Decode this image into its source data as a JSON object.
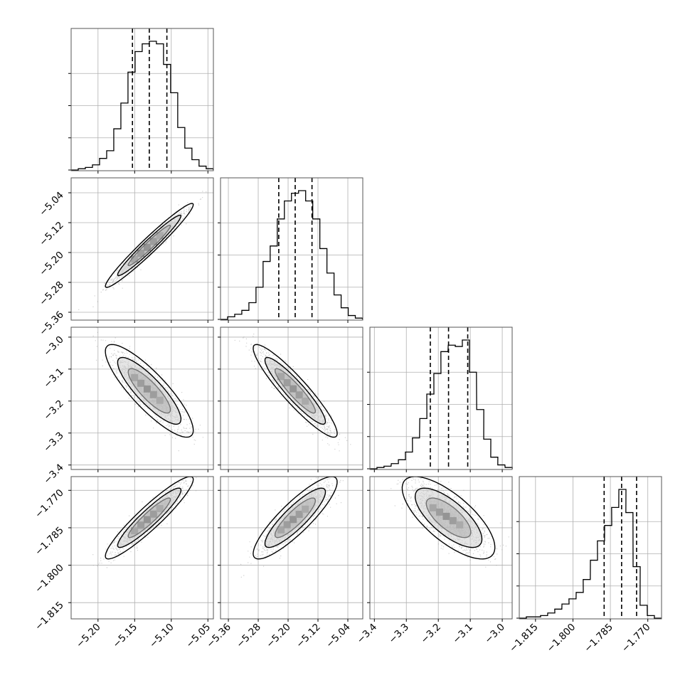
{
  "chart_data": {
    "type": "scatter",
    "title": "",
    "grid": true,
    "colors": {
      "ink": "#000000",
      "grid": "#b0b0b0",
      "scatter": "#9a9a9a",
      "frame": "#555555"
    },
    "parameters": [
      {
        "range": [
          -5.2367,
          -5.0425
        ],
        "ticks": [
          {
            "v": -5.2,
            "label": "−5.20"
          },
          {
            "v": -5.15,
            "label": "−5.15"
          },
          {
            "v": -5.1,
            "label": "−5.10"
          },
          {
            "v": -5.05,
            "label": "−5.05"
          }
        ],
        "quantiles": [
          -5.153,
          -5.13,
          -5.106
        ],
        "median": -5.13,
        "sigma": 0.024,
        "histogram": [
          {
            "x": -5.2367,
            "c": 0.0
          },
          {
            "x": -5.227,
            "c": 0.01
          },
          {
            "x": -5.2173,
            "c": 0.02
          },
          {
            "x": -5.2076,
            "c": 0.04
          },
          {
            "x": -5.1979,
            "c": 0.09
          },
          {
            "x": -5.1882,
            "c": 0.15
          },
          {
            "x": -5.1785,
            "c": 0.32
          },
          {
            "x": -5.1688,
            "c": 0.52
          },
          {
            "x": -5.1591,
            "c": 0.76
          },
          {
            "x": -5.1494,
            "c": 0.92
          },
          {
            "x": -5.1397,
            "c": 0.98
          },
          {
            "x": -5.13,
            "c": 1.0
          },
          {
            "x": -5.1203,
            "c": 0.98
          },
          {
            "x": -5.1106,
            "c": 0.82
          },
          {
            "x": -5.1009,
            "c": 0.6
          },
          {
            "x": -5.0912,
            "c": 0.33
          },
          {
            "x": -5.0815,
            "c": 0.17
          },
          {
            "x": -5.0718,
            "c": 0.08
          },
          {
            "x": -5.0621,
            "c": 0.03
          },
          {
            "x": -5.0524,
            "c": 0.01
          }
        ]
      },
      {
        "range": [
          -5.381,
          -5.0
        ],
        "ticks": [
          {
            "v": -5.36,
            "label": "−5.36"
          },
          {
            "v": -5.28,
            "label": "−5.28"
          },
          {
            "v": -5.2,
            "label": "−5.20"
          },
          {
            "v": -5.12,
            "label": "−5.12"
          },
          {
            "v": -5.04,
            "label": "−5.04"
          }
        ],
        "quantiles": [
          -5.225,
          -5.181,
          -5.136
        ],
        "median": -5.181,
        "sigma": 0.045,
        "histogram": [
          {
            "x": -5.381,
            "c": 0.0
          },
          {
            "x": -5.362,
            "c": 0.02
          },
          {
            "x": -5.343,
            "c": 0.04
          },
          {
            "x": -5.324,
            "c": 0.07
          },
          {
            "x": -5.305,
            "c": 0.13
          },
          {
            "x": -5.286,
            "c": 0.25
          },
          {
            "x": -5.267,
            "c": 0.45
          },
          {
            "x": -5.248,
            "c": 0.57
          },
          {
            "x": -5.229,
            "c": 0.78
          },
          {
            "x": -5.21,
            "c": 0.92
          },
          {
            "x": -5.191,
            "c": 0.98
          },
          {
            "x": -5.172,
            "c": 1.0
          },
          {
            "x": -5.153,
            "c": 0.92
          },
          {
            "x": -5.134,
            "c": 0.78
          },
          {
            "x": -5.115,
            "c": 0.55
          },
          {
            "x": -5.096,
            "c": 0.36
          },
          {
            "x": -5.077,
            "c": 0.19
          },
          {
            "x": -5.058,
            "c": 0.09
          },
          {
            "x": -5.039,
            "c": 0.03
          },
          {
            "x": -5.02,
            "c": 0.01
          }
        ]
      },
      {
        "range": [
          -3.414,
          -2.969
        ],
        "ticks": [
          {
            "v": -3.4,
            "label": "−3.4"
          },
          {
            "v": -3.3,
            "label": "−3.3"
          },
          {
            "v": -3.2,
            "label": "−3.2"
          },
          {
            "v": -3.1,
            "label": "−3.1"
          },
          {
            "v": -3.0,
            "label": "−3.0"
          }
        ],
        "quantiles": [
          -3.225,
          -3.168,
          -3.108
        ],
        "median": -3.168,
        "sigma": 0.058,
        "histogram": [
          {
            "x": -3.414,
            "c": 0.0
          },
          {
            "x": -3.392,
            "c": 0.01
          },
          {
            "x": -3.37,
            "c": 0.02
          },
          {
            "x": -3.347,
            "c": 0.04
          },
          {
            "x": -3.325,
            "c": 0.07
          },
          {
            "x": -3.303,
            "c": 0.13
          },
          {
            "x": -3.281,
            "c": 0.24
          },
          {
            "x": -3.258,
            "c": 0.39
          },
          {
            "x": -3.236,
            "c": 0.58
          },
          {
            "x": -3.214,
            "c": 0.74
          },
          {
            "x": -3.192,
            "c": 0.91
          },
          {
            "x": -3.169,
            "c": 0.96
          },
          {
            "x": -3.147,
            "c": 0.95
          },
          {
            "x": -3.125,
            "c": 1.0
          },
          {
            "x": -3.103,
            "c": 0.75
          },
          {
            "x": -3.08,
            "c": 0.46
          },
          {
            "x": -3.058,
            "c": 0.23
          },
          {
            "x": -3.036,
            "c": 0.09
          },
          {
            "x": -3.014,
            "c": 0.03
          },
          {
            "x": -2.991,
            "c": 0.01
          }
        ]
      },
      {
        "range": [
          -1.8215,
          -1.7645
        ],
        "ticks": [
          {
            "v": -1.815,
            "label": "−1.815"
          },
          {
            "v": -1.8,
            "label": "−1.800"
          },
          {
            "v": -1.785,
            "label": "−1.785"
          },
          {
            "v": -1.77,
            "label": "−1.770"
          }
        ],
        "quantiles": [
          -1.7875,
          -1.7805,
          -1.7745
        ],
        "median": -1.781,
        "sigma": 0.0066,
        "histogram": [
          {
            "x": -1.8215,
            "c": 0.0
          },
          {
            "x": -1.8187,
            "c": 0.01
          },
          {
            "x": -1.8158,
            "c": 0.01
          },
          {
            "x": -1.813,
            "c": 0.02
          },
          {
            "x": -1.8101,
            "c": 0.04
          },
          {
            "x": -1.8073,
            "c": 0.07
          },
          {
            "x": -1.8044,
            "c": 0.11
          },
          {
            "x": -1.8016,
            "c": 0.15
          },
          {
            "x": -1.7987,
            "c": 0.2
          },
          {
            "x": -1.7959,
            "c": 0.3
          },
          {
            "x": -1.793,
            "c": 0.45
          },
          {
            "x": -1.7902,
            "c": 0.6
          },
          {
            "x": -1.7873,
            "c": 0.72
          },
          {
            "x": -1.7845,
            "c": 0.86
          },
          {
            "x": -1.7816,
            "c": 1.0
          },
          {
            "x": -1.7788,
            "c": 0.82
          },
          {
            "x": -1.7759,
            "c": 0.4
          },
          {
            "x": -1.7731,
            "c": 0.1
          },
          {
            "x": -1.7702,
            "c": 0.02
          },
          {
            "x": -1.7674,
            "c": 0.0
          }
        ]
      }
    ],
    "pairs": [
      {
        "row": 1,
        "col": 0,
        "rho": 0.97
      },
      {
        "row": 2,
        "col": 0,
        "rho": -0.85
      },
      {
        "row": 2,
        "col": 1,
        "rho": -0.92
      },
      {
        "row": 3,
        "col": 0,
        "rho": 0.93
      },
      {
        "row": 3,
        "col": 1,
        "rho": 0.87
      },
      {
        "row": 3,
        "col": 2,
        "rho": -0.72
      }
    ],
    "contour_levels_sigma": [
      1.2,
      1.8,
      2.5
    ],
    "samples_per_panel": 1600
  }
}
